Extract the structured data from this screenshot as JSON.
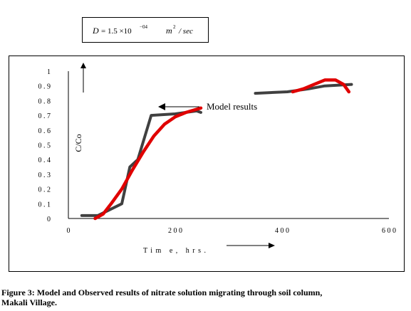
{
  "equation": {
    "lhs": "D",
    "coefficient": "= 1.5 ×10",
    "exponent": "−04",
    "units_base": "m",
    "units_exp": "2",
    "units_rest": "/ sec"
  },
  "chart_data": {
    "type": "line",
    "xlabel": "Tim e, hrs.",
    "ylabel": "C/Co",
    "xlim": [
      0,
      600
    ],
    "ylim": [
      0,
      1
    ],
    "xticks": [
      "0",
      "2 0 0",
      "4 0 0",
      "6 0 0"
    ],
    "xtick_values": [
      0,
      200,
      400,
      600
    ],
    "yticks": [
      "0",
      "0 . 1",
      "0 . 2",
      "0 . 3",
      "0 . 4",
      "0 . 5",
      "0 . 6",
      "0 . 7",
      "0 . 8",
      "0 . 9",
      "1"
    ],
    "ytick_values": [
      0,
      0.1,
      0.2,
      0.3,
      0.4,
      0.5,
      0.6,
      0.7,
      0.8,
      0.9,
      1.0
    ],
    "grid": false,
    "annotation": "Model results",
    "series": [
      {
        "color": "#404040",
        "segments": [
          [
            [
              25,
              0.02
            ],
            [
              55,
              0.02
            ],
            [
              100,
              0.1
            ],
            [
              115,
              0.35
            ],
            [
              130,
              0.4
            ],
            [
              155,
              0.7
            ],
            [
              200,
              0.71
            ],
            [
              240,
              0.73
            ],
            [
              248,
              0.72
            ]
          ],
          [
            [
              350,
              0.85
            ],
            [
              410,
              0.86
            ],
            [
              450,
              0.88
            ],
            [
              480,
              0.9
            ],
            [
              530,
              0.91
            ]
          ]
        ]
      },
      {
        "color": "#e00000",
        "segments": [
          [
            [
              50,
              0.0
            ],
            [
              65,
              0.03
            ],
            [
              80,
              0.1
            ],
            [
              100,
              0.2
            ],
            [
              120,
              0.33
            ],
            [
              140,
              0.45
            ],
            [
              160,
              0.56
            ],
            [
              180,
              0.64
            ],
            [
              200,
              0.69
            ],
            [
              220,
              0.72
            ],
            [
              248,
              0.75
            ]
          ],
          [
            [
              420,
              0.86
            ],
            [
              440,
              0.88
            ],
            [
              460,
              0.91
            ],
            [
              480,
              0.94
            ],
            [
              500,
              0.94
            ],
            [
              515,
              0.91
            ],
            [
              525,
              0.86
            ]
          ]
        ]
      }
    ]
  },
  "caption": {
    "line1": "Figure 3: Model and Observed results of nitrate solution migrating through soil column,",
    "line2": "Makali Village."
  }
}
